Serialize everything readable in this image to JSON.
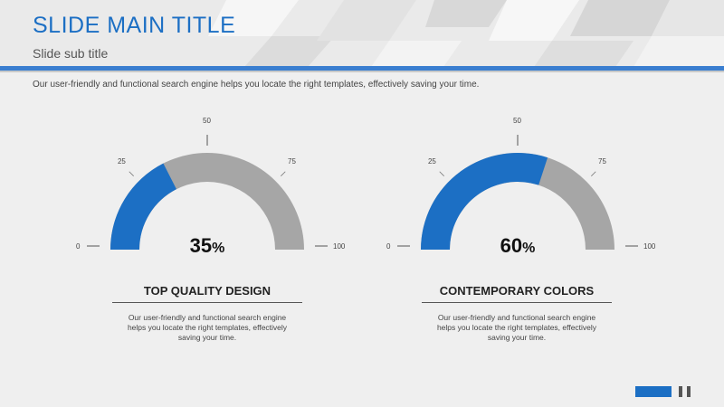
{
  "slide": {
    "title": "SLIDE MAIN TITLE",
    "subtitle": "Slide sub title",
    "description": "Our user-friendly and functional search engine helps you locate the right templates, effectively saving your time."
  },
  "gauges": [
    {
      "value": 35,
      "value_number": "35",
      "value_unit": "%",
      "ticks": [
        "0",
        "25",
        "50",
        "75",
        "100"
      ],
      "title": "TOP QUALITY DESIGN",
      "text_lines": [
        "Our user-friendly and functional search engine",
        "helps you locate the right templates, effectively",
        "saving your time."
      ]
    },
    {
      "value": 60,
      "value_number": "60",
      "value_unit": "%",
      "ticks": [
        "0",
        "25",
        "50",
        "75",
        "100"
      ],
      "title": "CONTEMPORARY COLORS",
      "text_lines": [
        "Our user-friendly and functional search engine",
        "helps you locate the right templates, effectively",
        "saving your time."
      ]
    }
  ],
  "colors": {
    "accent": "#1c6fc4",
    "track": "#a6a6a6"
  }
}
